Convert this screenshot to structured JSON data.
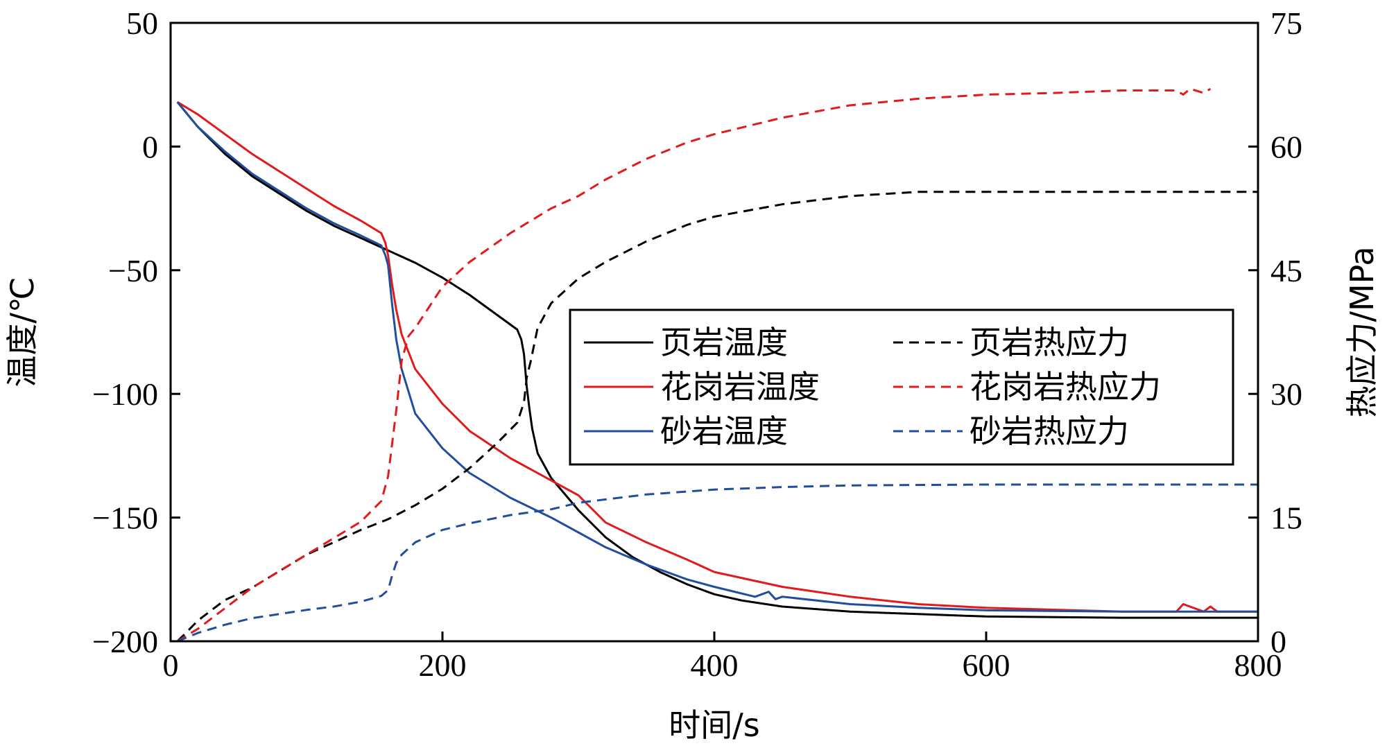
{
  "chart_data": {
    "type": "line",
    "xlabel": "时间/s",
    "ylabel_left": "温度/℃",
    "ylabel_right": "热应力/MPa",
    "xlim": [
      0,
      800
    ],
    "ylim_left": [
      -200,
      50
    ],
    "ylim_right": [
      0,
      75
    ],
    "xticks": [
      0,
      200,
      400,
      600,
      800
    ],
    "yticks_left": [
      -200,
      -150,
      -100,
      -50,
      0,
      50
    ],
    "yticks_right": [
      0,
      15,
      30,
      45,
      60,
      75
    ],
    "xtick_labels": [
      "0",
      "200",
      "400",
      "600",
      "800"
    ],
    "ytick_labels_left": [
      "−200",
      "−150",
      "−100",
      "−50",
      "0",
      "50"
    ],
    "ytick_labels_right": [
      "0",
      "15",
      "30",
      "45",
      "60",
      "75"
    ],
    "grid": false,
    "legend_position": "center-right",
    "colors": {
      "shale": "#000000",
      "granite": "#e31a1c",
      "sandstone": "#1f4e9e"
    },
    "series": [
      {
        "name": "页岩温度",
        "axis": "left",
        "style": "solid",
        "color": "#000000",
        "x": [
          5,
          20,
          40,
          60,
          80,
          100,
          120,
          140,
          160,
          180,
          200,
          220,
          240,
          255,
          258,
          260,
          262,
          264,
          266,
          270,
          280,
          300,
          320,
          340,
          360,
          380,
          400,
          420,
          450,
          500,
          550,
          600,
          700,
          800
        ],
        "y": [
          18,
          8,
          -3,
          -12,
          -19,
          -26,
          -32,
          -37,
          -42,
          -47,
          -53,
          -60,
          -68,
          -74,
          -78,
          -84,
          -97,
          -106,
          -114,
          -124,
          -134,
          -147,
          -158,
          -166,
          -172,
          -177,
          -181,
          -183.5,
          -186,
          -188,
          -189,
          -190,
          -190.5,
          -190.5
        ]
      },
      {
        "name": "花岗岩温度",
        "axis": "left",
        "style": "solid",
        "color": "#e31a1c",
        "x": [
          5,
          20,
          40,
          60,
          80,
          100,
          120,
          140,
          155,
          158,
          160,
          163,
          166,
          170,
          180,
          200,
          220,
          250,
          280,
          300,
          320,
          350,
          380,
          400,
          450,
          500,
          550,
          600,
          700,
          740,
          745,
          760,
          765,
          770,
          800
        ],
        "y": [
          18,
          13,
          5,
          -3,
          -10,
          -17,
          -24,
          -30,
          -35,
          -39,
          -44,
          -56,
          -66,
          -76,
          -90,
          -104,
          -115,
          -126,
          -135,
          -141,
          -152,
          -160,
          -167,
          -172,
          -178,
          -182,
          -185,
          -186.5,
          -188,
          -188,
          -185,
          -188,
          -186,
          -188,
          -188
        ]
      },
      {
        "name": "砂岩温度",
        "axis": "left",
        "style": "solid",
        "color": "#1f4e9e",
        "x": [
          5,
          20,
          40,
          60,
          80,
          100,
          120,
          140,
          155,
          158,
          160,
          163,
          166,
          170,
          180,
          200,
          220,
          250,
          280,
          300,
          320,
          350,
          380,
          400,
          430,
          440,
          445,
          450,
          500,
          550,
          600,
          700,
          800
        ],
        "y": [
          18,
          8,
          -2,
          -11,
          -18,
          -25,
          -31,
          -36,
          -40,
          -44,
          -48,
          -64,
          -78,
          -90,
          -108,
          -122,
          -132,
          -142,
          -150,
          -156,
          -162,
          -169,
          -175,
          -178,
          -182,
          -180,
          -183,
          -182,
          -185,
          -186.5,
          -187.5,
          -188,
          -188
        ]
      },
      {
        "name": "页岩热应力",
        "axis": "right",
        "style": "dashed",
        "color": "#000000",
        "x": [
          5,
          10,
          20,
          40,
          60,
          80,
          100,
          120,
          140,
          160,
          180,
          200,
          220,
          240,
          255,
          260,
          262,
          265,
          270,
          280,
          300,
          320,
          350,
          380,
          400,
          450,
          500,
          550,
          600,
          700,
          800
        ],
        "y": [
          0,
          0.8,
          2.5,
          5,
          6.5,
          8.5,
          10.5,
          12,
          13.5,
          14.8,
          16.5,
          18.5,
          21,
          24,
          26.5,
          29,
          32,
          34,
          38,
          41,
          44,
          46,
          48.5,
          50.5,
          51.5,
          53,
          54,
          54.5,
          54.5,
          54.5,
          54.5
        ]
      },
      {
        "name": "花岗岩热应力",
        "axis": "right",
        "style": "dashed",
        "color": "#e31a1c",
        "x": [
          5,
          20,
          40,
          60,
          80,
          100,
          120,
          140,
          155,
          160,
          163,
          166,
          170,
          175,
          180,
          200,
          220,
          250,
          280,
          300,
          320,
          350,
          380,
          400,
          450,
          500,
          550,
          600,
          650,
          700,
          740,
          745,
          750,
          760,
          765
        ],
        "y": [
          0,
          1.5,
          4,
          6.5,
          8.5,
          10.5,
          12.5,
          14.5,
          17,
          20,
          24,
          28,
          34,
          37,
          38,
          43,
          46,
          49.5,
          52.5,
          54,
          56,
          58.5,
          60.5,
          61.5,
          63.5,
          65,
          65.8,
          66.3,
          66.5,
          66.8,
          66.8,
          66.3,
          67,
          66.5,
          67
        ]
      },
      {
        "name": "砂岩热应力",
        "axis": "right",
        "style": "dashed",
        "color": "#1f4e9e",
        "x": [
          5,
          20,
          40,
          60,
          80,
          100,
          120,
          140,
          155,
          160,
          163,
          166,
          170,
          180,
          200,
          220,
          250,
          280,
          300,
          350,
          400,
          450,
          500,
          600,
          700,
          800
        ],
        "y": [
          0,
          1,
          2,
          2.8,
          3.3,
          3.8,
          4.2,
          4.8,
          5.5,
          6.2,
          8,
          9.5,
          10.5,
          12,
          13.5,
          14.3,
          15.3,
          16,
          16.8,
          17.8,
          18.4,
          18.7,
          18.9,
          19,
          19,
          19
        ]
      }
    ]
  }
}
